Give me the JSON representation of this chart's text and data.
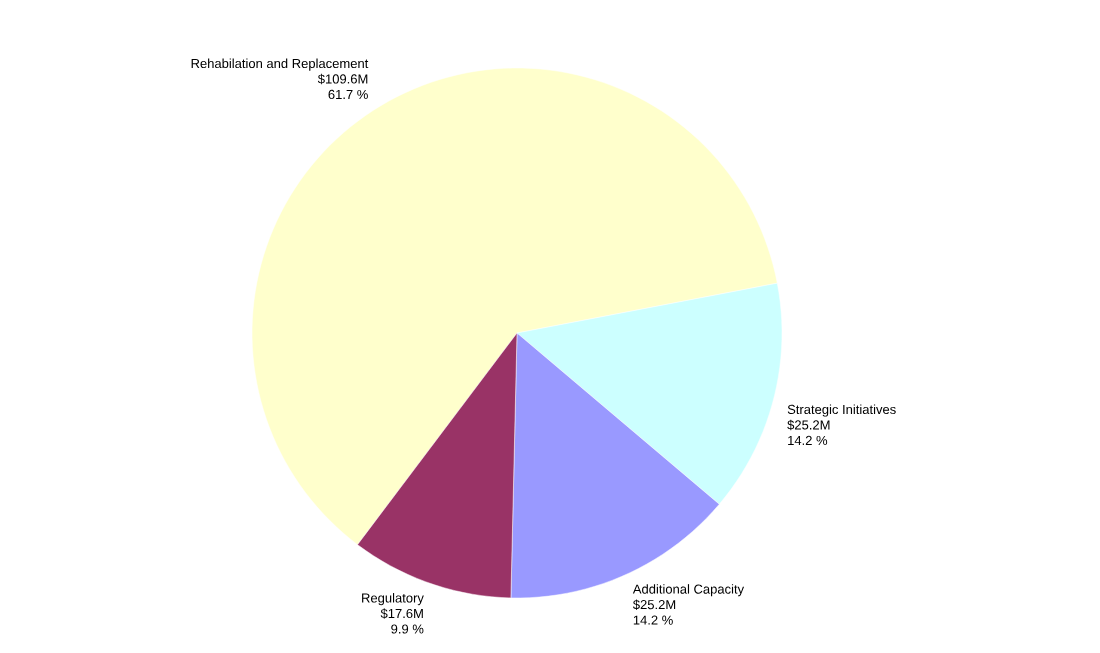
{
  "chart_data": {
    "type": "pie",
    "categories": [
      "Rehabilation and Replacement",
      "Strategic Initiatives",
      "Additional Capacity",
      "Regulatory"
    ],
    "values": [
      109.6,
      25.2,
      25.2,
      17.6
    ],
    "value_labels": [
      "$109.6M",
      "$25.2M",
      "$25.2M",
      "$17.6M"
    ],
    "colors": [
      "#ffffcc",
      "#ccffff",
      "#9999ff",
      "#993366"
    ],
    "annotations": [
      "61.7 %",
      "14.2 %",
      "14.2 %",
      "9.9 %"
    ]
  }
}
